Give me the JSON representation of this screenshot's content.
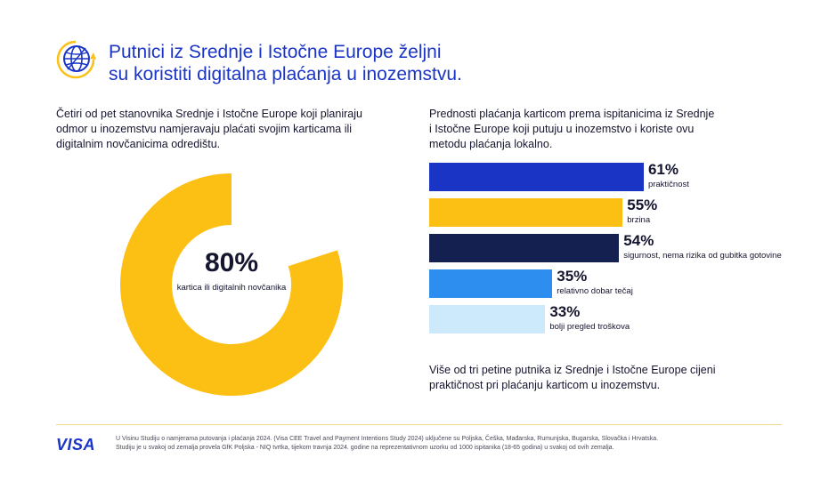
{
  "header": {
    "title_lines": [
      "Putnici iz Srednje i Istočne Europe željni",
      "su koristiti digitalna plaćanja u inozemstvu."
    ],
    "icon": "globe-icon"
  },
  "left": {
    "lead_lines": [
      "Četiri od pet stanovnika Srednje i Istočne Europe koji planiraju",
      "odmor u inozemstvu namjeravaju plaćati svojim karticama ili",
      "digitalnim novčanicima  odredištu."
    ]
  },
  "right": {
    "lead_lines": [
      "Prednosti plaćanja karticom prema ispitanicima iz Srednje",
      "i Istočne Europe koji putuju u inozemstvo i koriste ovu",
      "metodu plaćanja lokalno."
    ],
    "conclusion_lines": [
      "Više od tri petine putnika iz Srednje i Istočne Europe cijeni",
      "praktičnost pri plaćanju karticom u inozemstvu."
    ]
  },
  "chart_data": [
    {
      "type": "pie",
      "variant": "donut",
      "value": 80,
      "value_label": "80%",
      "caption": "kartica ili digitalnih novčanika",
      "colors": {
        "filled": "#fcc015",
        "empty": "#ffffff"
      }
    },
    {
      "type": "bar",
      "orientation": "horizontal",
      "categories": [
        "praktičnost",
        "brzina",
        "sigurnost, nema rizika od gubitka gotovine",
        "relativno dobar tečaj",
        "bolji pregled troškova"
      ],
      "values": [
        61,
        55,
        54,
        35,
        33
      ],
      "value_labels": [
        "61%",
        "55%",
        "54%",
        "35%",
        "33%"
      ],
      "colors": [
        "#1a34c6",
        "#fcc015",
        "#14204f",
        "#2d8ef0",
        "#cde9fc"
      ],
      "xlim": [
        0,
        100
      ]
    }
  ],
  "footer": {
    "logo_text": "VISA",
    "footnote_lines": [
      "U Visinu Studiju o namjerama putovanja i plaćanja 2024. (Visa CEE Travel and Payment Intentions Study 2024) uključene su Poljska, Češka, Mađarska, Rumunjska, Bugarska, Slovačka i Hrvatska.",
      "Studiju je u svakoj od zemalja provela GfK Poljska - NIQ tvrtka,  tijekom travnja 2024. godine na reprezentativnom uzorku od 1000 ispitanika (18-65 godina) u svakoj od ovih zemalja."
    ]
  }
}
